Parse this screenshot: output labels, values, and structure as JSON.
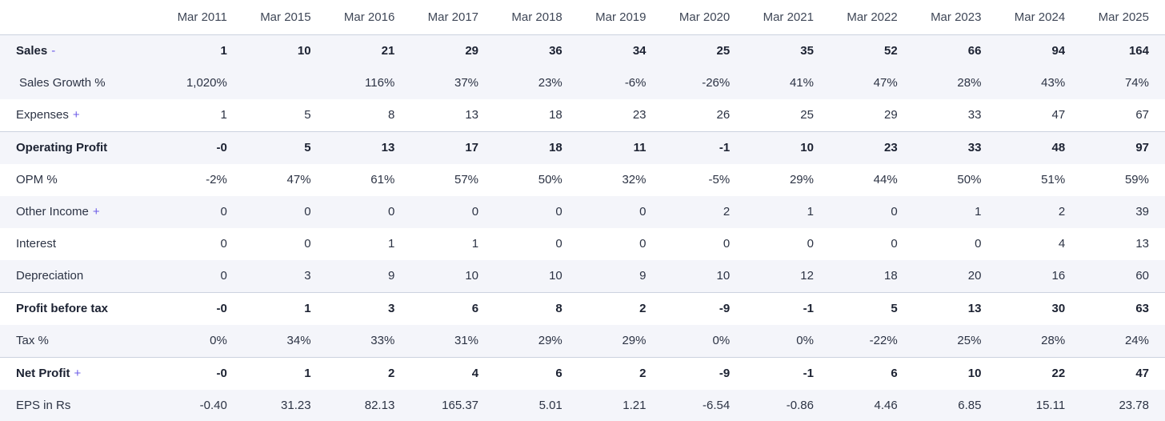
{
  "accent_color": "#6c5ce7",
  "colors": {
    "row_stripe": "#f4f5fa",
    "section_border": "#ccd2df",
    "header_text": "#3f4757",
    "body_text": "#2c3344",
    "strong_text": "#1c2232"
  },
  "table": {
    "columns": [
      "Mar 2011",
      "Mar 2015",
      "Mar 2016",
      "Mar 2017",
      "Mar 2018",
      "Mar 2019",
      "Mar 2020",
      "Mar 2021",
      "Mar 2022",
      "Mar 2023",
      "Mar 2024",
      "Mar 2025"
    ],
    "rows": [
      {
        "label": "Sales",
        "toggle": "-",
        "bold": true,
        "indent": false,
        "values": [
          "1",
          "10",
          "21",
          "29",
          "36",
          "34",
          "25",
          "35",
          "52",
          "66",
          "94",
          "164"
        ]
      },
      {
        "label": "Sales Growth %",
        "toggle": "",
        "bold": false,
        "indent": true,
        "values": [
          "1,020%",
          "",
          "116%",
          "37%",
          "23%",
          "-6%",
          "-26%",
          "41%",
          "47%",
          "28%",
          "43%",
          "74%"
        ]
      },
      {
        "label": "Expenses",
        "toggle": "+",
        "bold": false,
        "indent": false,
        "values": [
          "1",
          "5",
          "8",
          "13",
          "18",
          "23",
          "26",
          "25",
          "29",
          "33",
          "47",
          "67"
        ]
      },
      {
        "label": "Operating Profit",
        "toggle": "",
        "bold": true,
        "indent": false,
        "values": [
          "-0",
          "5",
          "13",
          "17",
          "18",
          "11",
          "-1",
          "10",
          "23",
          "33",
          "48",
          "97"
        ]
      },
      {
        "label": "OPM %",
        "toggle": "",
        "bold": false,
        "indent": false,
        "values": [
          "-2%",
          "47%",
          "61%",
          "57%",
          "50%",
          "32%",
          "-5%",
          "29%",
          "44%",
          "50%",
          "51%",
          "59%"
        ]
      },
      {
        "label": "Other Income",
        "toggle": "+",
        "bold": false,
        "indent": false,
        "values": [
          "0",
          "0",
          "0",
          "0",
          "0",
          "0",
          "2",
          "1",
          "0",
          "1",
          "2",
          "39"
        ]
      },
      {
        "label": "Interest",
        "toggle": "",
        "bold": false,
        "indent": false,
        "values": [
          "0",
          "0",
          "1",
          "1",
          "0",
          "0",
          "0",
          "0",
          "0",
          "0",
          "4",
          "13"
        ]
      },
      {
        "label": "Depreciation",
        "toggle": "",
        "bold": false,
        "indent": false,
        "values": [
          "0",
          "3",
          "9",
          "10",
          "10",
          "9",
          "10",
          "12",
          "18",
          "20",
          "16",
          "60"
        ]
      },
      {
        "label": "Profit before tax",
        "toggle": "",
        "bold": true,
        "indent": false,
        "values": [
          "-0",
          "1",
          "3",
          "6",
          "8",
          "2",
          "-9",
          "-1",
          "5",
          "13",
          "30",
          "63"
        ]
      },
      {
        "label": "Tax %",
        "toggle": "",
        "bold": false,
        "indent": false,
        "values": [
          "0%",
          "34%",
          "33%",
          "31%",
          "29%",
          "29%",
          "0%",
          "0%",
          "-22%",
          "25%",
          "28%",
          "24%"
        ]
      },
      {
        "label": "Net Profit",
        "toggle": "+",
        "bold": true,
        "indent": false,
        "values": [
          "-0",
          "1",
          "2",
          "4",
          "6",
          "2",
          "-9",
          "-1",
          "6",
          "10",
          "22",
          "47"
        ]
      },
      {
        "label": "EPS in Rs",
        "toggle": "",
        "bold": false,
        "indent": false,
        "values": [
          "-0.40",
          "31.23",
          "82.13",
          "165.37",
          "5.01",
          "1.21",
          "-6.54",
          "-0.86",
          "4.46",
          "6.85",
          "15.11",
          "23.78"
        ]
      }
    ]
  }
}
